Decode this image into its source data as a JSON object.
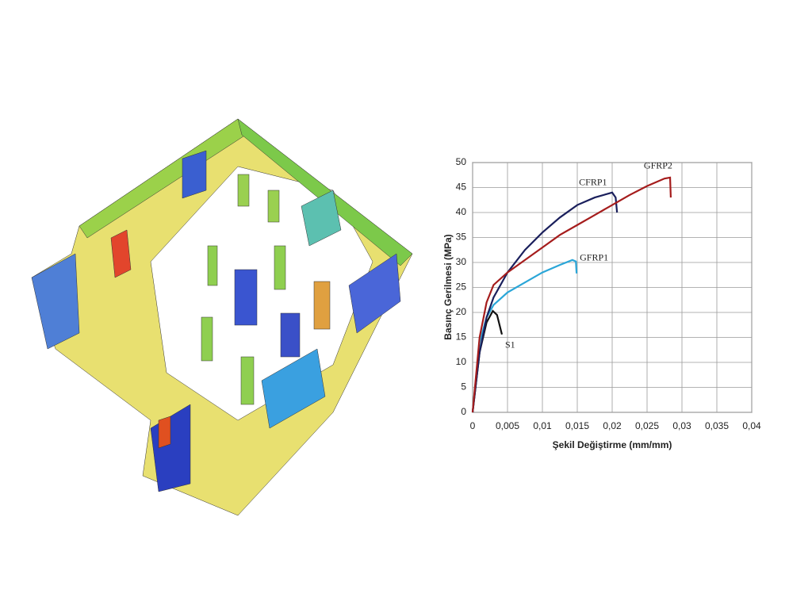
{
  "chart_data": {
    "type": "line",
    "ylabel": "Basınç Gerilmesi (MPa)",
    "xlabel": "Şekil Değiştirme (mm/mm)",
    "xlim": [
      0,
      0.04
    ],
    "xticks": [
      0,
      {
        "value": 0.005,
        "label": "0,005"
      },
      {
        "value": 0.01,
        "label": "0,01"
      },
      {
        "value": 0.015,
        "label": "0,015"
      },
      {
        "value": 0.02,
        "label": "0,02"
      },
      {
        "value": 0.025,
        "label": "0,025"
      },
      {
        "value": 0.03,
        "label": "0,03"
      },
      {
        "value": 0.035,
        "label": "0,035"
      },
      {
        "value": 0.04,
        "label": "0,04"
      }
    ],
    "ylim": [
      0,
      50
    ],
    "yticks": [
      0,
      5,
      10,
      15,
      20,
      25,
      30,
      35,
      40,
      45,
      50
    ],
    "grid": true,
    "series": [
      {
        "name": "S1",
        "color": "#111111",
        "x": [
          0,
          0.001,
          0.002,
          0.0029,
          0.0035,
          0.0042
        ],
        "values": [
          0,
          12,
          18,
          20.3,
          19.5,
          15.6
        ]
      },
      {
        "name": "GFRP1",
        "color": "#2aa6d8",
        "x": [
          0,
          0.001,
          0.002,
          0.003,
          0.005,
          0.0075,
          0.01,
          0.0125,
          0.0143,
          0.0148,
          0.0149
        ],
        "values": [
          0,
          14,
          19,
          21.5,
          24,
          26,
          28,
          29.5,
          30.5,
          30.2,
          27.8
        ]
      },
      {
        "name": "CFRP1",
        "color": "#1a1f5c",
        "x": [
          0,
          0.001,
          0.002,
          0.003,
          0.005,
          0.0075,
          0.01,
          0.0125,
          0.015,
          0.0175,
          0.02,
          0.0205,
          0.0207
        ],
        "values": [
          0,
          12,
          19,
          23,
          28,
          32.5,
          36,
          39,
          41.5,
          43,
          44,
          43,
          40
        ]
      },
      {
        "name": "GFRP2",
        "color": "#a51c1c",
        "x": [
          0,
          0.001,
          0.002,
          0.003,
          0.005,
          0.0075,
          0.01,
          0.0125,
          0.015,
          0.0175,
          0.02,
          0.0225,
          0.025,
          0.0275,
          0.0283,
          0.0284
        ],
        "values": [
          0,
          15,
          22,
          25.5,
          28,
          30.5,
          33,
          35.5,
          37.5,
          39.5,
          41.5,
          43.5,
          45.3,
          46.8,
          47,
          43
        ]
      }
    ]
  }
}
